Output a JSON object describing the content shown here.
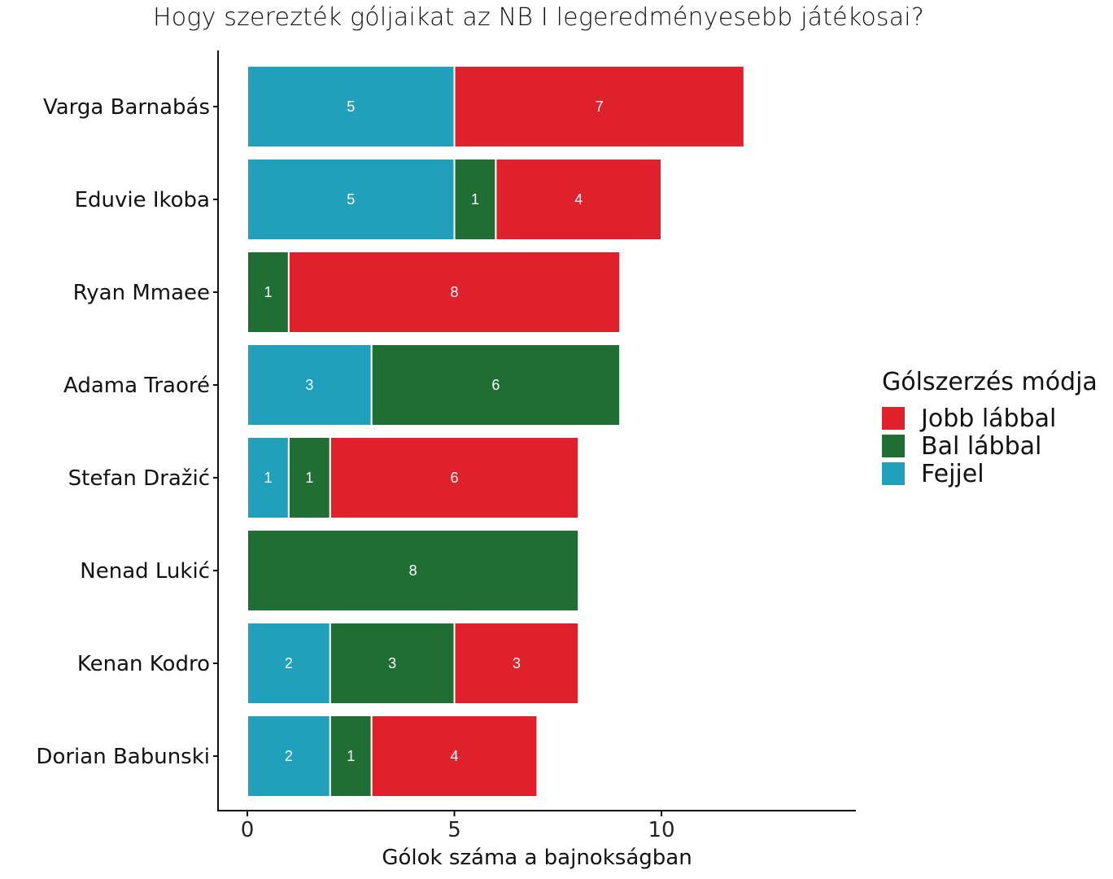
{
  "chart_data": {
    "type": "bar",
    "orientation": "horizontal",
    "stacked": true,
    "title": "Hogy szerezték góljaikat az NB I legeredményesebb játékosai?",
    "xlabel": "Gólok száma a bajnokságban",
    "ylabel": "",
    "xlim": [
      0,
      14.5
    ],
    "xticks": [
      0,
      5,
      10
    ],
    "grid": false,
    "categories": [
      "Varga Barnabás",
      "Eduvie Ikoba",
      "Ryan Mmaee",
      "Adama Traoré",
      "Stefan Dražić",
      "Nenad Lukić",
      "Kenan Kodro",
      "Dorian Babunski"
    ],
    "series": [
      {
        "name": "Fejjel",
        "color": "#21A0BC",
        "values": [
          5,
          5,
          0,
          3,
          1,
          0,
          2,
          2
        ]
      },
      {
        "name": "Bal lábbal",
        "color": "#1F6E33",
        "values": [
          0,
          1,
          1,
          6,
          1,
          8,
          3,
          1
        ]
      },
      {
        "name": "Jobb lábbal",
        "color": "#DE212A",
        "values": [
          7,
          4,
          8,
          0,
          6,
          0,
          3,
          4
        ]
      }
    ],
    "legend": {
      "title": "Gólszerzés módja",
      "position": "right",
      "order": [
        "Jobb lábbal",
        "Bal lábbal",
        "Fejjel"
      ]
    }
  }
}
